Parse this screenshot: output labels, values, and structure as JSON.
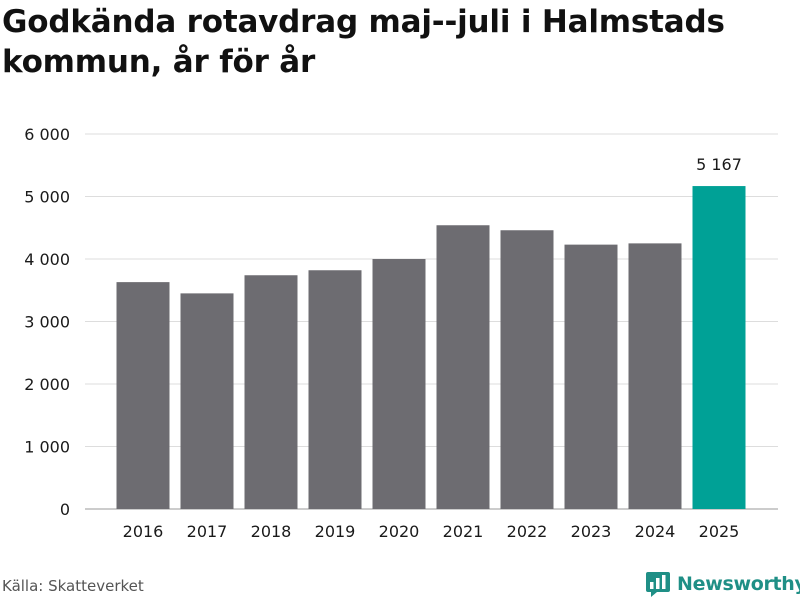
{
  "chart_data": {
    "type": "bar",
    "title": "Godkända rotavdrag maj--juli i Halmstads kommun, år för år",
    "categories": [
      "2016",
      "2017",
      "2018",
      "2019",
      "2020",
      "2021",
      "2022",
      "2023",
      "2024",
      "2025"
    ],
    "values": [
      3630,
      3450,
      3740,
      3820,
      4000,
      4540,
      4460,
      4230,
      4250,
      5167
    ],
    "ylim": [
      0,
      6000
    ],
    "yticks": [
      0,
      1000,
      2000,
      3000,
      4000,
      5000,
      6000
    ],
    "ytick_labels": [
      "0",
      "1 000",
      "2 000",
      "3 000",
      "4 000",
      "5 000",
      "6 000"
    ],
    "grid": true,
    "highlight_index": 9,
    "highlight_label": "5 167",
    "colors": {
      "bar": "#6d6c71",
      "highlight": "#00a196",
      "grid": "#dddddd"
    }
  },
  "footer": {
    "source": "Källa: Skatteverket",
    "brand": "Newsworthy",
    "brand_icon": "bar-chart-icon"
  }
}
